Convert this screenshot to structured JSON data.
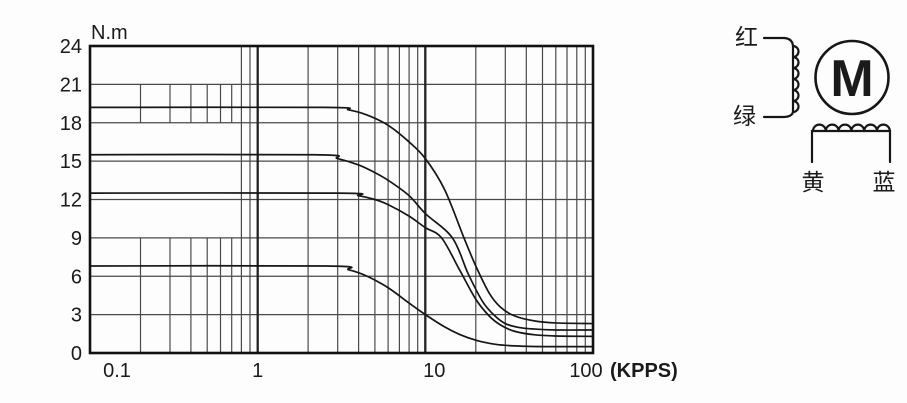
{
  "figure_title": "stepper-motor torque-frequency characteristic with wiring diagram",
  "chart_data": {
    "type": "line",
    "title": "",
    "xlabel_unit": "(KPPS)",
    "ylabel_unit": "N.m",
    "x_axis": {
      "scale": "log",
      "min": 0.1,
      "max": 100,
      "ticks": [
        {
          "value": 0.1,
          "label": "0.1"
        },
        {
          "value": 1,
          "label": "1"
        },
        {
          "value": 10,
          "label": "10"
        },
        {
          "value": 100,
          "label": "100"
        }
      ]
    },
    "y_axis": {
      "min": 0,
      "max": 24,
      "tick_step": 3,
      "ticks": [
        0,
        3,
        6,
        9,
        12,
        15,
        18,
        21,
        24
      ]
    },
    "grid": {
      "major_vertical": [
        1,
        10
      ],
      "minor_vertical_full": [
        0.8,
        0.9,
        2,
        3,
        4,
        5,
        6,
        7,
        8,
        9,
        20,
        30,
        40,
        50,
        60,
        70,
        80,
        90
      ],
      "minor_vertical_banded": {
        "values": [
          0.2,
          0.3,
          0.4,
          0.5,
          0.6,
          0.7
        ],
        "bands_nm": [
          [
            0,
            9
          ],
          [
            18,
            21
          ]
        ]
      },
      "horizontal": [
        3,
        6,
        9,
        12,
        15,
        18,
        21
      ]
    },
    "series": [
      {
        "name": "curve-1",
        "holding_torque_nm": 19.2,
        "points": [
          [
            0.1,
            19.2
          ],
          [
            2.5,
            19.2
          ],
          [
            3.5,
            19.0
          ],
          [
            4.5,
            18.6
          ],
          [
            6,
            17.8
          ],
          [
            8,
            16.5
          ],
          [
            10,
            15.2
          ],
          [
            13,
            12.8
          ],
          [
            17,
            9.0
          ],
          [
            20,
            6.8
          ],
          [
            24,
            4.7
          ],
          [
            28,
            3.6
          ],
          [
            34,
            2.9
          ],
          [
            45,
            2.5
          ],
          [
            60,
            2.35
          ],
          [
            100,
            2.3
          ]
        ]
      },
      {
        "name": "curve-2",
        "holding_torque_nm": 15.5,
        "points": [
          [
            0.1,
            15.5
          ],
          [
            2.2,
            15.5
          ],
          [
            3,
            15.2
          ],
          [
            4,
            14.7
          ],
          [
            5,
            14.1
          ],
          [
            6,
            13.5
          ],
          [
            8,
            12.3
          ],
          [
            10,
            10.9
          ],
          [
            14.5,
            9.0
          ],
          [
            18,
            6.2
          ],
          [
            22,
            4.0
          ],
          [
            26,
            2.9
          ],
          [
            30,
            2.3
          ],
          [
            36,
            2.0
          ],
          [
            45,
            1.87
          ],
          [
            60,
            1.8
          ],
          [
            100,
            1.8
          ]
        ]
      },
      {
        "name": "curve-3",
        "holding_torque_nm": 12.5,
        "points": [
          [
            0.1,
            12.5
          ],
          [
            3,
            12.5
          ],
          [
            4,
            12.3
          ],
          [
            5,
            12.0
          ],
          [
            6,
            11.6
          ],
          [
            8,
            10.7
          ],
          [
            10,
            9.8
          ],
          [
            12.5,
            9.0
          ],
          [
            16,
            6.5
          ],
          [
            20,
            4.2
          ],
          [
            24,
            2.9
          ],
          [
            28,
            2.2
          ],
          [
            34,
            1.7
          ],
          [
            45,
            1.42
          ],
          [
            60,
            1.33
          ],
          [
            100,
            1.3
          ]
        ]
      },
      {
        "name": "curve-4",
        "holding_torque_nm": 6.8,
        "points": [
          [
            0.1,
            6.8
          ],
          [
            2.6,
            6.8
          ],
          [
            3.5,
            6.5
          ],
          [
            4.5,
            6.0
          ],
          [
            6,
            5.1
          ],
          [
            8,
            3.9
          ],
          [
            10,
            3.0
          ],
          [
            13,
            2.05
          ],
          [
            16,
            1.45
          ],
          [
            20,
            1.0
          ],
          [
            25,
            0.72
          ],
          [
            30,
            0.6
          ],
          [
            38,
            0.53
          ],
          [
            50,
            0.5
          ],
          [
            100,
            0.5
          ]
        ]
      }
    ]
  },
  "wiring": {
    "winding_a_top_label": "红",
    "winding_a_bottom_label": "绿",
    "winding_b_left_label": "黄",
    "winding_b_right_label": "蓝",
    "motor_symbol": "M"
  },
  "colors": {
    "background": "#fdfdfd",
    "border": "#111111",
    "grid_major": "#222222",
    "grid_minor": "#4a4a4a",
    "curve": "#161616",
    "text": "#1a1a1a"
  }
}
